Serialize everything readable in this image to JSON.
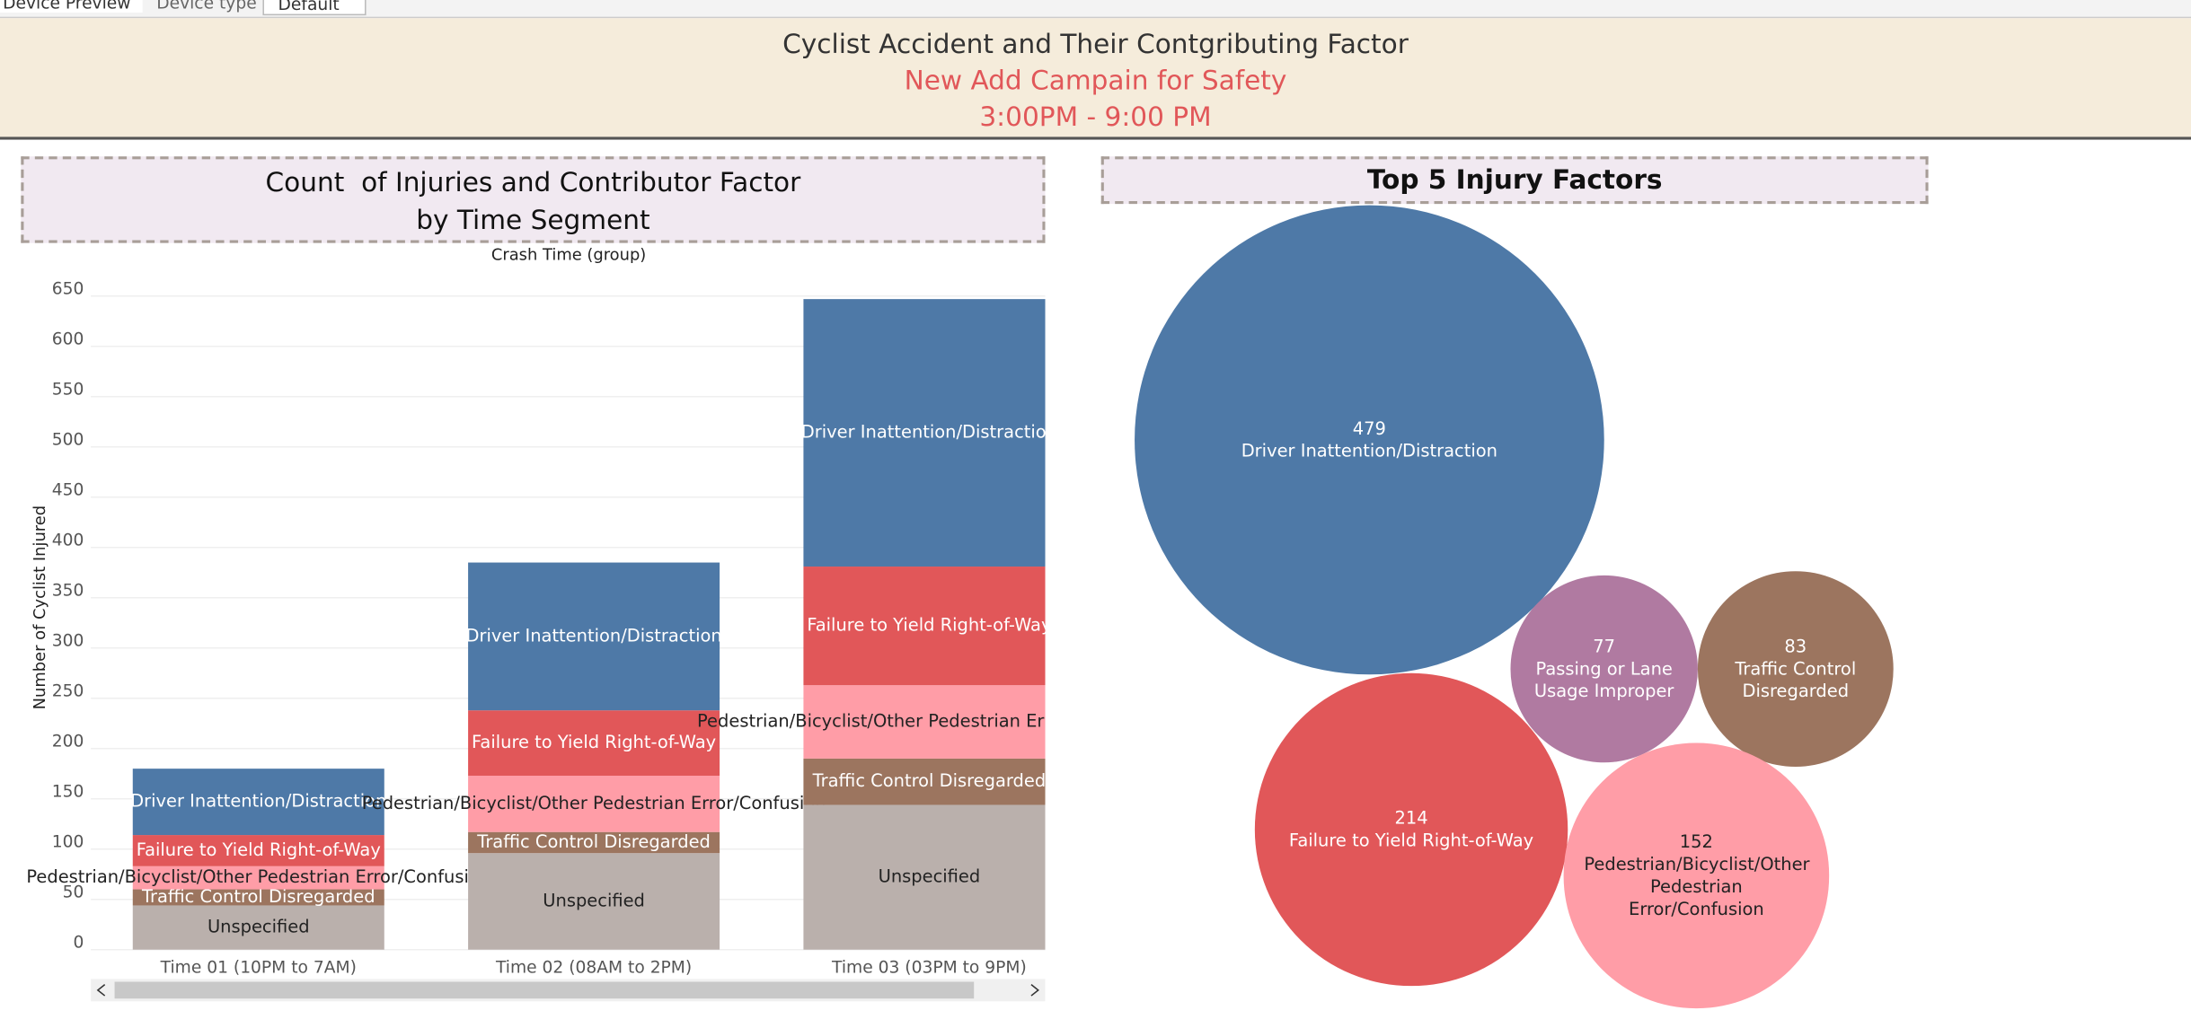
{
  "toolbar": {
    "tab": "Device Preview",
    "device_type_label": "Device type",
    "device_type_value": "Default"
  },
  "header": {
    "title": "Cyclist Accident and Their Contgributing Factor",
    "subtitle": "New Add Campain for Safety",
    "time": "3:00PM - 9:00 PM"
  },
  "chart_data": [
    {
      "type": "bar",
      "stacked": true,
      "title": "Count  of Injuries and Contributor Factor",
      "subtitle": "by Time Segment",
      "x_label": "Crash Time (group)",
      "y_label": "Number of Cyclist Injured",
      "categories": [
        "Time 01 (10PM to 7AM)",
        "Time 02 (08AM to 2PM)",
        "Time 03 (03PM to 9PM)"
      ],
      "series": [
        {
          "name": "Unspecified",
          "color": "#bab0ac",
          "values": [
            44,
            96,
            144
          ]
        },
        {
          "name": "Traffic Control Disregarded",
          "color": "#9c755f",
          "values": [
            16,
            21,
            46
          ]
        },
        {
          "name": "Pedestrian/Bicyclist/Other Pedestrian Error/Confusion",
          "color": "#ff9da7",
          "values": [
            23,
            56,
            73
          ]
        },
        {
          "name": "Failure to Yield Right-of-Way",
          "color": "#e15759",
          "values": [
            31,
            65,
            118
          ]
        },
        {
          "name": "Driver Inattention/Distraction",
          "color": "#4e79a7",
          "values": [
            66,
            147,
            266
          ]
        }
      ],
      "ylim": [
        0,
        665
      ],
      "yticks": [
        0,
        50,
        100,
        150,
        200,
        250,
        300,
        350,
        400,
        450,
        500,
        550,
        600,
        650
      ],
      "grid": true
    },
    {
      "type": "bubble",
      "title": "Top 5 Injury Factors",
      "categories": [
        "Driver Inattention/Distraction",
        "Passing or Lane Usage Improper",
        "Traffic Control Disregarded",
        "Failure to Yield Right-of-Way",
        "Pedestrian/Bicyclist/Other Pedestrian Error/Confusion"
      ],
      "values": [
        479,
        77,
        83,
        214,
        152
      ],
      "colors": [
        "#4e79a7",
        "#b07aa1",
        "#9c755f",
        "#e15759",
        "#ff9da7"
      ]
    }
  ]
}
